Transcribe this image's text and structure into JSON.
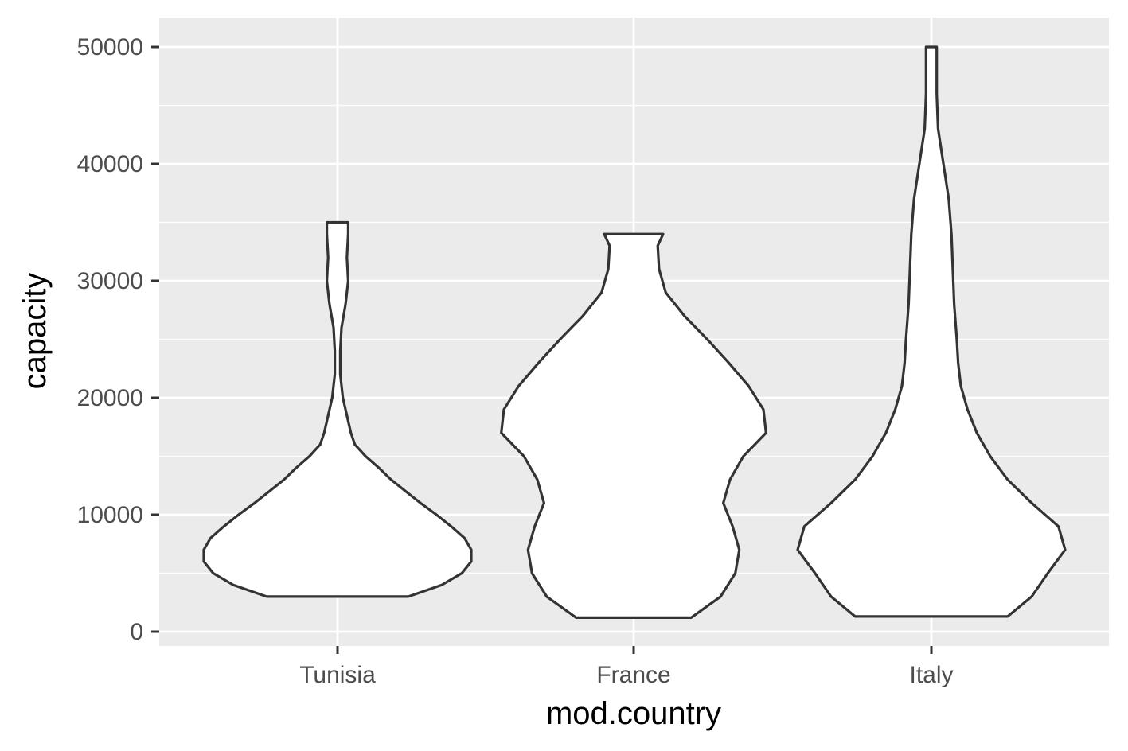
{
  "chart_data": {
    "type": "violin",
    "xlabel": "mod.country",
    "ylabel": "capacity",
    "categories": [
      "Tunisia",
      "France",
      "Italy"
    ],
    "ylim": [
      -1200,
      52500
    ],
    "y_ticks": [
      0,
      10000,
      20000,
      30000,
      40000,
      50000
    ],
    "y_tick_labels": [
      "0",
      "10000",
      "20000",
      "30000",
      "40000",
      "50000"
    ],
    "grid": true,
    "panel_background": "#EBEBEB",
    "grid_color": "#FFFFFF",
    "outline_color": "#333333",
    "fill_color": "#FFFFFF",
    "series": [
      {
        "category": "Tunisia",
        "min": 3000,
        "max": 35000,
        "density_profile": [
          [
            3000,
            0.53
          ],
          [
            4000,
            0.78
          ],
          [
            5000,
            0.93
          ],
          [
            6000,
            1.0
          ],
          [
            7000,
            1.0
          ],
          [
            8000,
            0.95
          ],
          [
            9000,
            0.85
          ],
          [
            10000,
            0.74
          ],
          [
            11000,
            0.62
          ],
          [
            12000,
            0.51
          ],
          [
            13000,
            0.4
          ],
          [
            14000,
            0.31
          ],
          [
            15000,
            0.21
          ],
          [
            16000,
            0.13
          ],
          [
            17000,
            0.1
          ],
          [
            18000,
            0.08
          ],
          [
            20000,
            0.04
          ],
          [
            22000,
            0.02
          ],
          [
            24000,
            0.02
          ],
          [
            26000,
            0.03
          ],
          [
            28000,
            0.06
          ],
          [
            30000,
            0.08
          ],
          [
            32000,
            0.07
          ],
          [
            34000,
            0.08
          ],
          [
            35000,
            0.08
          ]
        ]
      },
      {
        "category": "France",
        "min": 1200,
        "max": 34000,
        "density_profile": [
          [
            1200,
            0.43
          ],
          [
            3000,
            0.65
          ],
          [
            5000,
            0.76
          ],
          [
            7000,
            0.79
          ],
          [
            9000,
            0.74
          ],
          [
            11000,
            0.67
          ],
          [
            13000,
            0.72
          ],
          [
            15000,
            0.82
          ],
          [
            17000,
            0.99
          ],
          [
            19000,
            0.97
          ],
          [
            21000,
            0.86
          ],
          [
            23000,
            0.71
          ],
          [
            25000,
            0.55
          ],
          [
            27000,
            0.38
          ],
          [
            29000,
            0.24
          ],
          [
            31000,
            0.19
          ],
          [
            33000,
            0.18
          ],
          [
            34000,
            0.22
          ]
        ]
      },
      {
        "category": "Italy",
        "min": 1300,
        "max": 50000,
        "density_profile": [
          [
            1300,
            0.57
          ],
          [
            3000,
            0.75
          ],
          [
            5000,
            0.87
          ],
          [
            7000,
            1.0
          ],
          [
            9000,
            0.95
          ],
          [
            11000,
            0.75
          ],
          [
            13000,
            0.57
          ],
          [
            15000,
            0.44
          ],
          [
            17000,
            0.34
          ],
          [
            19000,
            0.27
          ],
          [
            21000,
            0.22
          ],
          [
            23000,
            0.2
          ],
          [
            25000,
            0.19
          ],
          [
            28000,
            0.17
          ],
          [
            31000,
            0.16
          ],
          [
            34000,
            0.15
          ],
          [
            37000,
            0.13
          ],
          [
            40000,
            0.09
          ],
          [
            43000,
            0.05
          ],
          [
            46000,
            0.04
          ],
          [
            48000,
            0.04
          ],
          [
            50000,
            0.04
          ]
        ]
      }
    ]
  }
}
